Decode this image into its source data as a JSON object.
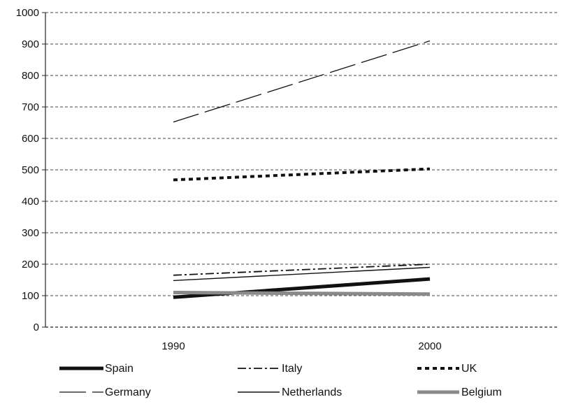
{
  "chart_data": {
    "type": "line",
    "title": "",
    "xlabel": "",
    "ylabel": "",
    "categories": [
      "1990",
      "2000"
    ],
    "ylim": [
      0,
      1000
    ],
    "yticks": [
      0,
      100,
      200,
      300,
      400,
      500,
      600,
      700,
      800,
      900,
      1000
    ],
    "ytick_labels": [
      "0",
      "100",
      "200",
      "300",
      "400",
      "500",
      "600",
      "700",
      "800",
      "900",
      "1000"
    ],
    "grid": true,
    "legend_position": "bottom",
    "series": [
      {
        "name": "Spain",
        "values": [
          95,
          153
        ],
        "style": "solid-thick",
        "color": "#111111"
      },
      {
        "name": "Italy",
        "values": [
          165,
          200
        ],
        "style": "dash-dot",
        "color": "#111111"
      },
      {
        "name": "UK",
        "values": [
          468,
          503
        ],
        "style": "dotted-thick",
        "color": "#111111"
      },
      {
        "name": "Germany",
        "values": [
          652,
          910
        ],
        "style": "long-dash",
        "color": "#111111"
      },
      {
        "name": "Netherlands",
        "values": [
          148,
          190
        ],
        "style": "solid-thin",
        "color": "#111111"
      },
      {
        "name": "Belgium",
        "values": [
          110,
          105
        ],
        "style": "solid-grey",
        "color": "#8a8a8a"
      }
    ]
  }
}
